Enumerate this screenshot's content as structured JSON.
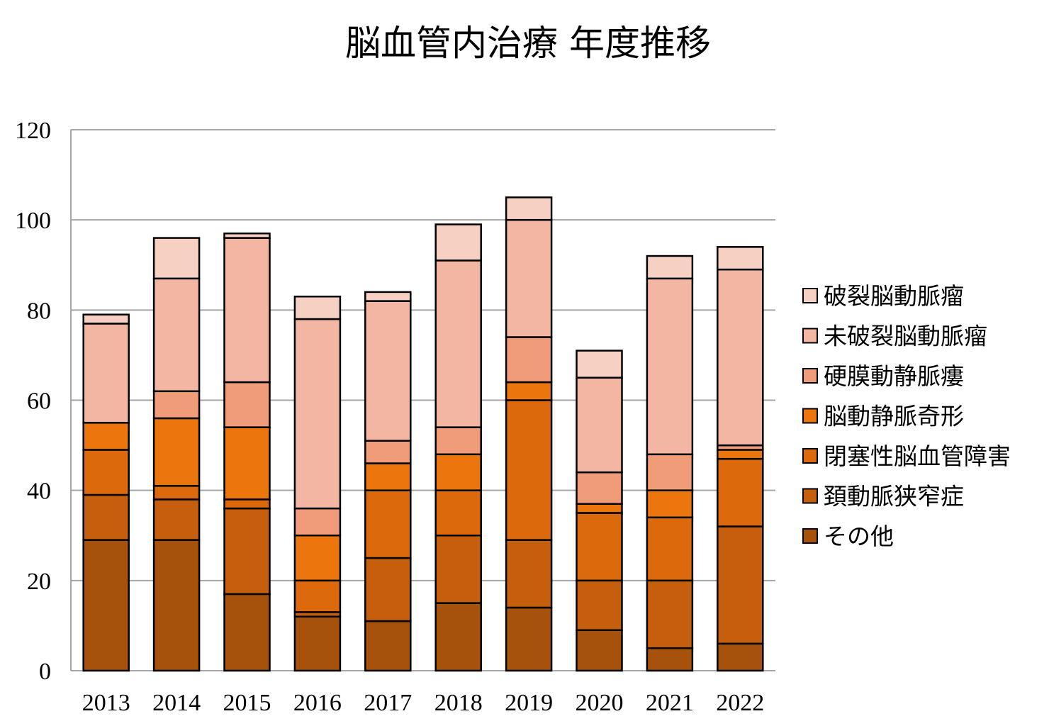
{
  "chart_data": {
    "type": "bar",
    "stacked": true,
    "title": "脳血管内治療 年度推移",
    "xlabel": "",
    "ylabel": "",
    "categories": [
      "2013",
      "2014",
      "2015",
      "2016",
      "2017",
      "2018",
      "2019",
      "2020",
      "2021",
      "2022"
    ],
    "ylim": [
      0,
      120
    ],
    "yticks": [
      0,
      20,
      40,
      60,
      80,
      100,
      120
    ],
    "grid": true,
    "legend_position": "right",
    "series": [
      {
        "name": "その他",
        "color": "#a6520a",
        "values": [
          29,
          29,
          17,
          12,
          11,
          15,
          14,
          9,
          5,
          6
        ]
      },
      {
        "name": "頚動脈狭窄症",
        "color": "#c55e0d",
        "values": [
          10,
          9,
          19,
          1,
          14,
          15,
          15,
          11,
          15,
          26
        ]
      },
      {
        "name": "閉塞性脳血管障害",
        "color": "#dc690c",
        "values": [
          10,
          3,
          2,
          7,
          15,
          10,
          31,
          15,
          14,
          15
        ]
      },
      {
        "name": "脳動静脈奇形",
        "color": "#ec760e",
        "values": [
          6,
          15,
          16,
          10,
          6,
          8,
          4,
          2,
          6,
          2
        ]
      },
      {
        "name": "硬膜動静脈瘻",
        "color": "#f09c78",
        "values": [
          0,
          6,
          10,
          6,
          5,
          6,
          10,
          7,
          8,
          1
        ]
      },
      {
        "name": "未破裂脳動脈瘤",
        "color": "#f3b6a2",
        "values": [
          22,
          25,
          32,
          42,
          31,
          37,
          26,
          21,
          39,
          39
        ]
      },
      {
        "name": "破裂脳動脈瘤",
        "color": "#f7d0c4",
        "values": [
          2,
          9,
          1,
          5,
          2,
          8,
          5,
          6,
          5,
          5
        ]
      }
    ]
  }
}
